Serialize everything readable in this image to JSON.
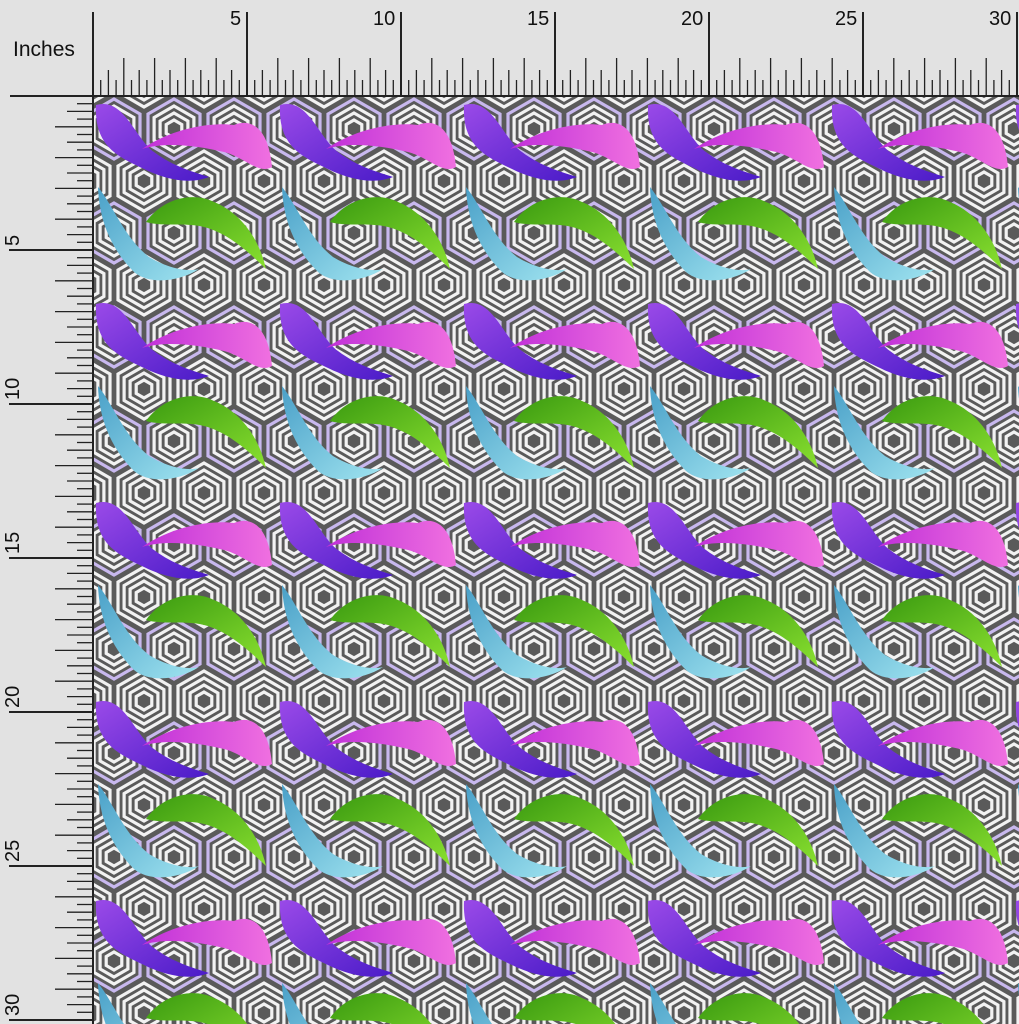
{
  "ruler": {
    "units": "Inches",
    "top_labels": [
      "5",
      "10",
      "15",
      "20",
      "25",
      "30"
    ],
    "left_labels": [
      "5",
      "10",
      "15",
      "20",
      "25",
      "30"
    ],
    "subdivisions_per_inch": 4
  },
  "fabric": {
    "pattern": "koi fish over concentric hexagon geometric background",
    "colors": {
      "background_dark": "#555555",
      "background_light": "#f2f2f2",
      "lavender": "#b9a8e0",
      "purple_fish": "#6a2bd8",
      "magenta_fish": "#e040e0",
      "green_fish": "#5ac818",
      "cyan_fish": "#6ec6dc"
    }
  }
}
